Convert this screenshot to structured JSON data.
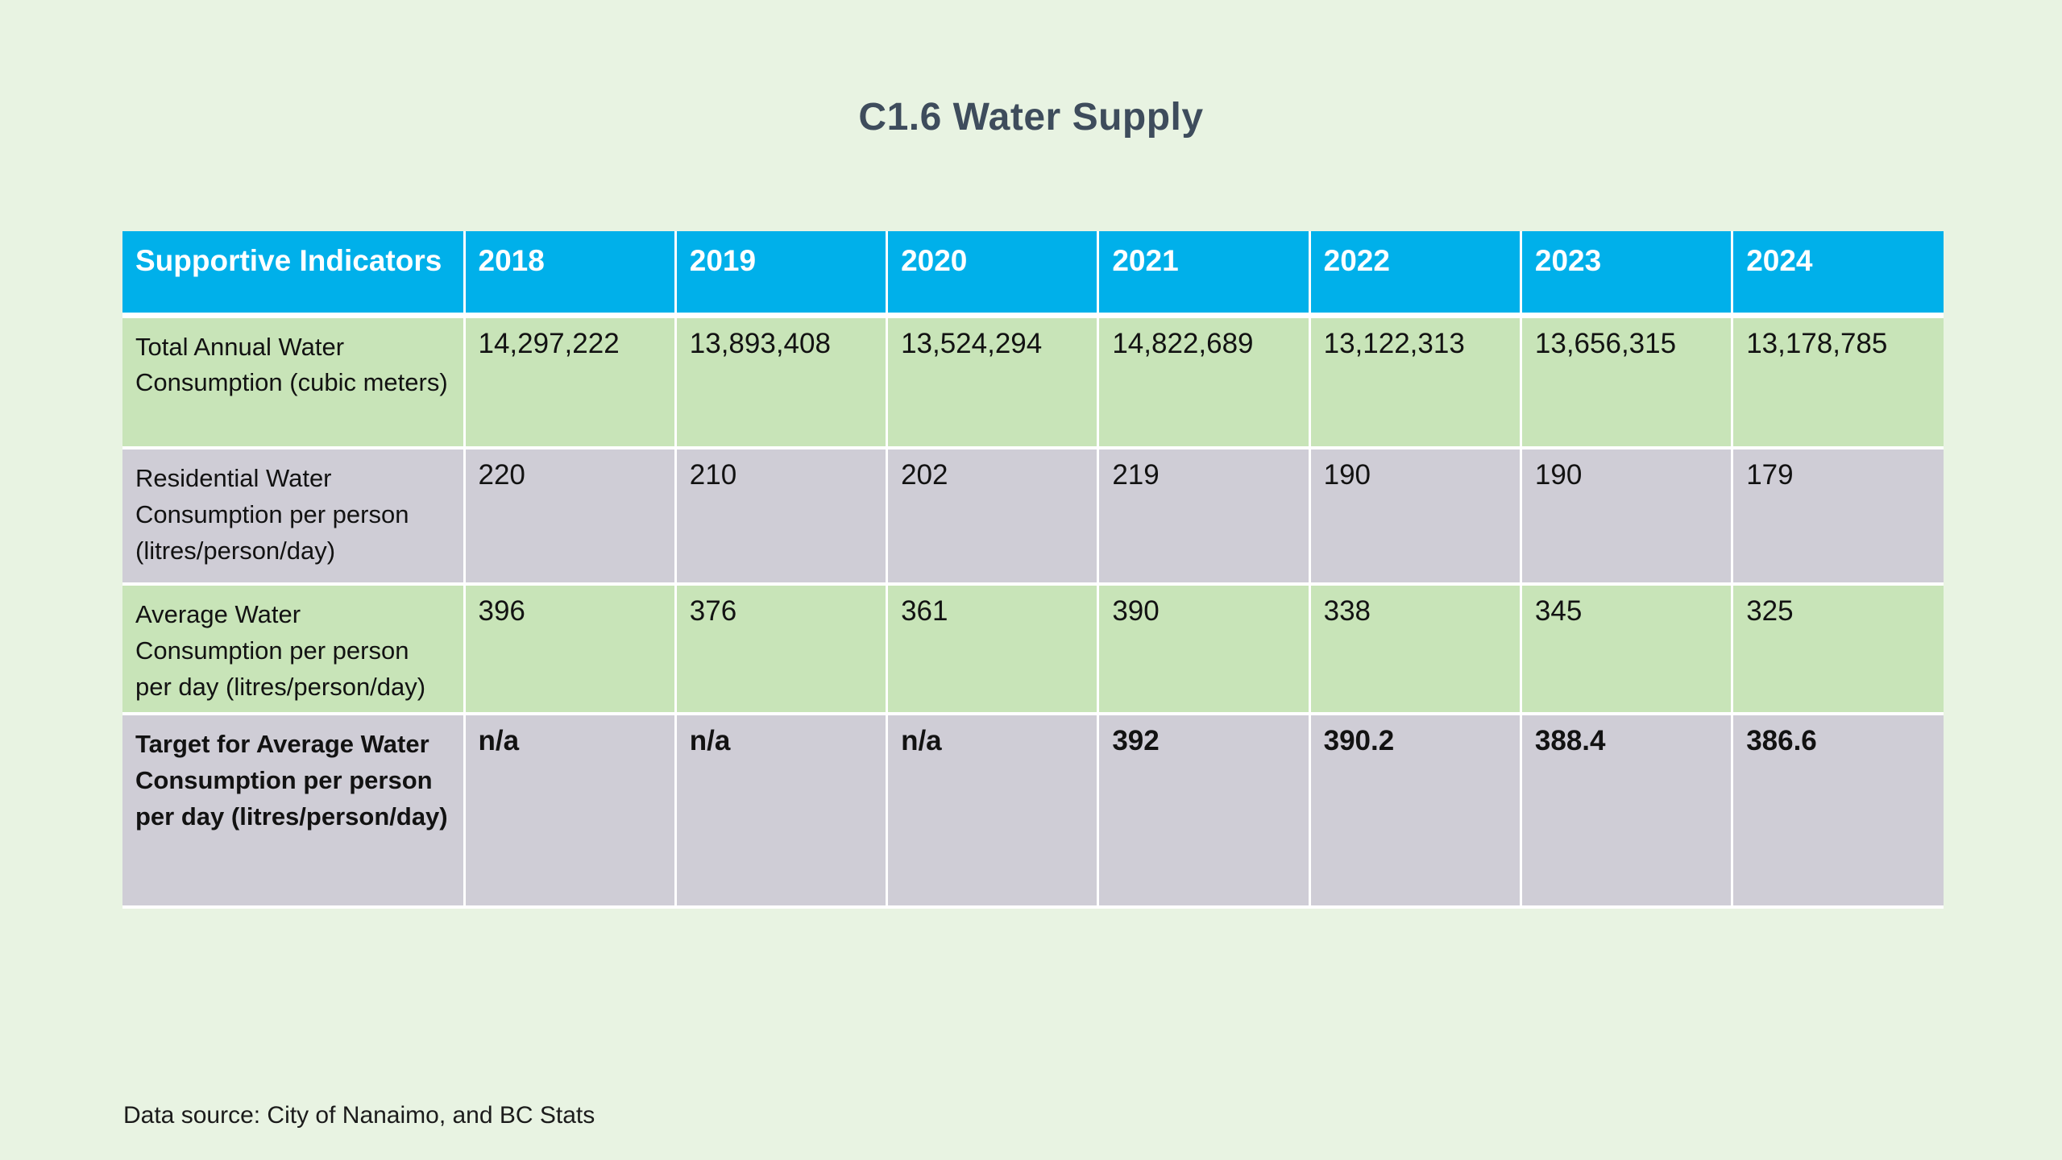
{
  "page": {
    "title": "C1.6 Water Supply",
    "source_note": "Data source: City of Nanaimo, and BC Stats"
  },
  "colors": {
    "background": "#E8F3E2",
    "header_bg": "#00B0EA",
    "header_text": "#FFFFFF",
    "green_row": "#C8E4B8",
    "gray_row": "#CFCDD6",
    "title_text": "#3E4C5C",
    "body_text": "#121212",
    "divider": "#FFFFFF"
  },
  "chart_data": {
    "type": "table",
    "title": "C1.6 Water Supply",
    "columns": [
      "Supportive Indicators",
      "2018",
      "2019",
      "2020",
      "2021",
      "2022",
      "2023",
      "2024"
    ],
    "rows": [
      {
        "label": "Total Annual Water Consumption (cubic meters)",
        "values": [
          "14,297,222",
          "13,893,408",
          "13,524,294",
          "14,822,689",
          "13,122,313",
          "13,656,315",
          "13,178,785"
        ],
        "values_numeric": [
          14297222,
          13893408,
          13524294,
          14822689,
          13122313,
          13656315,
          13178785
        ],
        "shade": "green",
        "bold": false
      },
      {
        "label": "Residential Water Consumption per person (litres/person/day)",
        "values": [
          "220",
          "210",
          "202",
          "219",
          "190",
          "190",
          "179"
        ],
        "values_numeric": [
          220,
          210,
          202,
          219,
          190,
          190,
          179
        ],
        "shade": "gray",
        "bold": false
      },
      {
        "label": "Average Water Consumption per person per day (litres/person/day)",
        "values": [
          "396",
          "376",
          "361",
          "390",
          "338",
          "345",
          "325"
        ],
        "values_numeric": [
          396,
          376,
          361,
          390,
          338,
          345,
          325
        ],
        "shade": "green",
        "bold": false
      },
      {
        "label": "Target for Average Water Consumption per person per day (litres/person/day)",
        "values": [
          "n/a",
          "n/a",
          "n/a",
          "392",
          "390.2",
          "388.4",
          "386.6"
        ],
        "values_numeric": [
          null,
          null,
          null,
          392,
          390.2,
          388.4,
          386.6
        ],
        "shade": "gray",
        "bold": true
      }
    ],
    "source_note": "Data source: City of Nanaimo, and BC Stats",
    "legend": "none",
    "grid": "white cell dividers"
  }
}
